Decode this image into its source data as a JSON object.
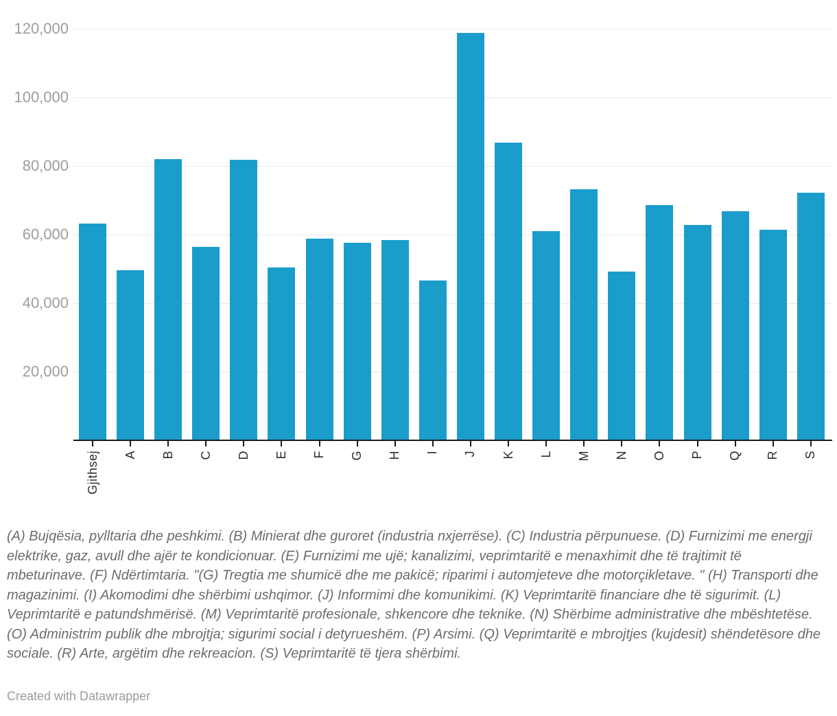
{
  "chart_data": {
    "type": "bar",
    "title": "",
    "xlabel": "",
    "ylabel": "",
    "categories": [
      "Gjithsej",
      "A",
      "B",
      "C",
      "D",
      "E",
      "F",
      "G",
      "H",
      "I",
      "J",
      "K",
      "L",
      "M",
      "N",
      "O",
      "P",
      "Q",
      "R",
      "S"
    ],
    "values": [
      63300,
      49700,
      82100,
      56500,
      81900,
      50400,
      58800,
      57700,
      58400,
      46700,
      118900,
      86900,
      61100,
      73300,
      49200,
      68700,
      62900,
      66800,
      61500,
      72300
    ],
    "ylim": [
      0,
      120000
    ],
    "y_ticks": [
      {
        "value": 120000,
        "label": "120,000"
      },
      {
        "value": 100000,
        "label": "100,000"
      },
      {
        "value": 80000,
        "label": "80,000"
      },
      {
        "value": 60000,
        "label": "60,000"
      },
      {
        "value": 40000,
        "label": "40,000"
      },
      {
        "value": 20000,
        "label": "20,000"
      }
    ],
    "grid": true,
    "legend": "none"
  },
  "colors": {
    "bar": "#1A9DCB",
    "grid": "#E8E8E8",
    "axis": "#1A1A1A",
    "y_tick_label": "#9D9D9D",
    "x_tick_label": "#2B2B2B",
    "footnote": "#6C6C6C",
    "credit": "#9B9B9B",
    "background": "#FFFFFF"
  },
  "footer": {
    "footnote": "(A) Bujqësia, pylltaria dhe peshkimi. (B) Minierat dhe guroret (industria nxjerrëse). (C) Industria përpunuese. (D) Furnizimi me energji elektrike, gaz, avull dhe ajër te kondicionuar. (E) Furnizimi me ujë; kanalizimi, veprimtaritë e menaxhimit dhe të trajtimit të mbeturinave. (F) Ndërtimtaria. \"(G) Tregtia me shumicë dhe me pakicë; riparimi i automjeteve dhe motorçikletave. \" (H) Transporti dhe magazinimi. (I) Akomodimi dhe shërbimi ushqimor. (J) Informimi dhe komunikimi. (K) Veprimtaritë financiare dhe të sigurimit. (L) Veprimtaritë e patundshmërisë. (M) Veprimtaritë profesionale, shkencore dhe teknike. (N) Shërbime administrative dhe mbështetëse. (O) Administrim publik dhe mbrojtja; sigurimi social i detyrueshëm. (P) Arsimi. (Q) Veprimtaritë e mbrojtjes (kujdesit) shëndetësore dhe sociale. (R) Arte, argëtim dhe rekreacion. (S) Veprimtaritë të tjera shërbimi.",
    "credit": "Created with Datawrapper"
  }
}
